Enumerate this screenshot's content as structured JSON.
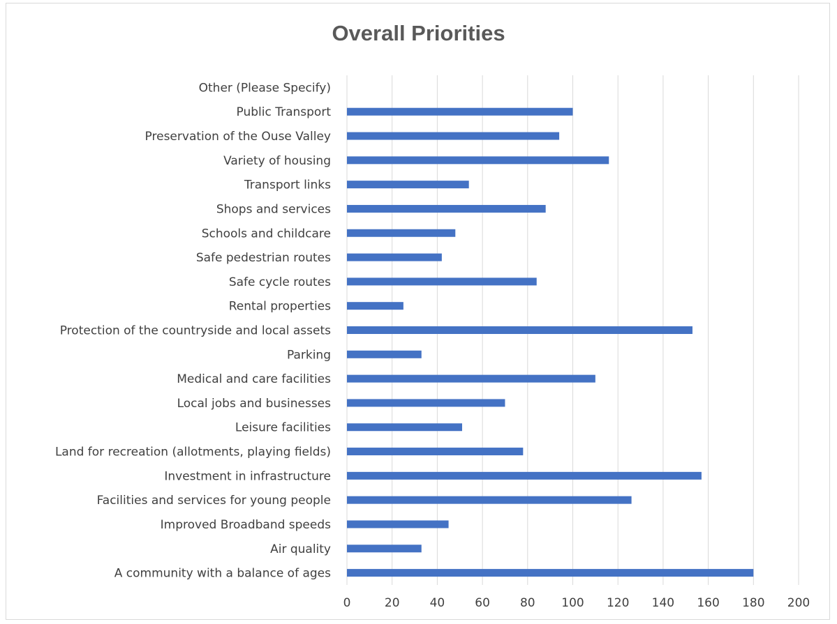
{
  "chart_data": {
    "type": "bar",
    "orientation": "horizontal",
    "title": "Overall Priorities",
    "xlabel": "",
    "ylabel": "",
    "xlim": [
      0,
      200
    ],
    "ticks": [
      "0",
      "20",
      "40",
      "60",
      "80",
      "100",
      "120",
      "140",
      "160",
      "180",
      "200"
    ],
    "grid": true,
    "bar_color": "#4472c4",
    "categories": [
      "A community with a balance of ages",
      "Air quality",
      "Improved Broadband speeds",
      "Facilities and services for young people",
      "Investment in infrastructure",
      "Land for recreation (allotments, playing fields)",
      "Leisure facilities",
      "Local jobs and businesses",
      "Medical and care facilities",
      "Parking",
      "Protection of the countryside and local assets",
      "Rental properties",
      "Safe cycle routes",
      "Safe pedestrian routes",
      "Schools and childcare",
      "Shops and services",
      "Transport links",
      "Variety of housing",
      "Preservation of the Ouse Valley",
      "Public Transport",
      "Other (Please Specify)"
    ],
    "values": [
      180,
      33,
      45,
      126,
      157,
      78,
      51,
      70,
      110,
      33,
      153,
      25,
      84,
      42,
      48,
      88,
      54,
      116,
      94,
      100,
      0
    ]
  }
}
